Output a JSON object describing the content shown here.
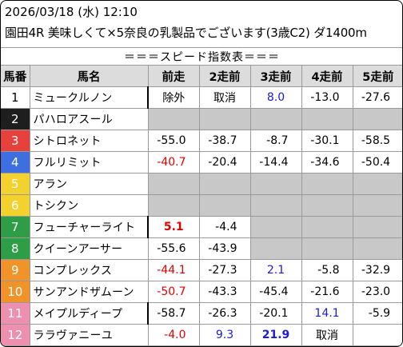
{
  "header": {
    "line1": "2026/03/18 (水) 12:10",
    "line2": "園田4R 美味しくて×5奈良の乳製品でございます(3歳C2) ダ1400m"
  },
  "table": {
    "title": "＝＝＝スピード指数表＝＝＝",
    "columns": [
      "馬番",
      "馬名",
      "前走",
      "2走前",
      "3走前",
      "4走前",
      "5走前"
    ],
    "rows": [
      {
        "num": "1",
        "name": "ミュークルノン",
        "cells": [
          {
            "v": "除外",
            "style": "text"
          },
          {
            "v": "取消",
            "style": "text"
          },
          {
            "v": "8.0",
            "style": "blue"
          },
          {
            "v": "-13.0",
            "style": "normal"
          },
          {
            "v": "-27.6",
            "style": "normal"
          }
        ]
      },
      {
        "num": "2",
        "name": "パハロアスール",
        "cells": [
          {
            "v": "",
            "style": "empty"
          },
          {
            "v": "",
            "style": "empty"
          },
          {
            "v": "",
            "style": "empty"
          },
          {
            "v": "",
            "style": "empty"
          },
          {
            "v": "",
            "style": "empty"
          }
        ]
      },
      {
        "num": "3",
        "name": "シトロネット",
        "cells": [
          {
            "v": "-55.0",
            "style": "normal"
          },
          {
            "v": "-38.7",
            "style": "normal"
          },
          {
            "v": "-8.7",
            "style": "normal"
          },
          {
            "v": "-30.1",
            "style": "normal"
          },
          {
            "v": "-58.5",
            "style": "normal"
          }
        ]
      },
      {
        "num": "4",
        "name": "フルリミット",
        "cells": [
          {
            "v": "-40.7",
            "style": "red"
          },
          {
            "v": "-20.4",
            "style": "normal"
          },
          {
            "v": "-14.4",
            "style": "normal"
          },
          {
            "v": "-34.6",
            "style": "normal"
          },
          {
            "v": "-50.4",
            "style": "normal"
          }
        ]
      },
      {
        "num": "5",
        "name": "アラン",
        "cells": [
          {
            "v": "",
            "style": "empty"
          },
          {
            "v": "",
            "style": "empty"
          },
          {
            "v": "",
            "style": "empty"
          },
          {
            "v": "",
            "style": "empty"
          },
          {
            "v": "",
            "style": "empty"
          }
        ]
      },
      {
        "num": "6",
        "name": "トシクン",
        "cells": [
          {
            "v": "",
            "style": "empty"
          },
          {
            "v": "",
            "style": "empty"
          },
          {
            "v": "",
            "style": "empty"
          },
          {
            "v": "",
            "style": "empty"
          },
          {
            "v": "",
            "style": "empty"
          }
        ]
      },
      {
        "num": "7",
        "name": "フューチャーライト",
        "cells": [
          {
            "v": "5.1",
            "style": "redbold"
          },
          {
            "v": "-4.4",
            "style": "normal"
          },
          {
            "v": "",
            "style": "empty"
          },
          {
            "v": "",
            "style": "empty"
          },
          {
            "v": "",
            "style": "empty"
          }
        ]
      },
      {
        "num": "8",
        "name": "クイーンアーサー",
        "cells": [
          {
            "v": "-55.6",
            "style": "normal"
          },
          {
            "v": "-43.9",
            "style": "normal"
          },
          {
            "v": "",
            "style": "empty"
          },
          {
            "v": "",
            "style": "empty"
          },
          {
            "v": "",
            "style": "empty"
          }
        ]
      },
      {
        "num": "9",
        "name": "コンプレックス",
        "cells": [
          {
            "v": "-44.1",
            "style": "red"
          },
          {
            "v": "-27.3",
            "style": "normal"
          },
          {
            "v": "2.1",
            "style": "blue"
          },
          {
            "v": "-5.8",
            "style": "normal"
          },
          {
            "v": "-32.9",
            "style": "normal"
          }
        ]
      },
      {
        "num": "10",
        "name": "サンアンドザムーン",
        "cells": [
          {
            "v": "-50.7",
            "style": "red"
          },
          {
            "v": "-43.3",
            "style": "normal"
          },
          {
            "v": "-45.4",
            "style": "normal"
          },
          {
            "v": "-21.6",
            "style": "normal"
          },
          {
            "v": "-23.0",
            "style": "normal"
          }
        ]
      },
      {
        "num": "11",
        "name": "メイプルディープ",
        "cells": [
          {
            "v": "-58.7",
            "style": "normal"
          },
          {
            "v": "-26.3",
            "style": "normal"
          },
          {
            "v": "-20.1",
            "style": "normal"
          },
          {
            "v": "14.1",
            "style": "blue"
          },
          {
            "v": "-5.9",
            "style": "normal"
          }
        ]
      },
      {
        "num": "12",
        "name": "ララヴァニーユ",
        "cells": [
          {
            "v": "-4.0",
            "style": "red"
          },
          {
            "v": "9.3",
            "style": "blue"
          },
          {
            "v": "21.9",
            "style": "bluebold"
          },
          {
            "v": "取消",
            "style": "text"
          },
          {
            "v": "",
            "style": "white"
          }
        ]
      }
    ]
  },
  "waku_colors": {
    "1": {
      "bg": "#ffffff",
      "fg": "#000000"
    },
    "2": {
      "bg": "#1e1e1e",
      "fg": "#ffffff"
    },
    "3": {
      "bg": "#e8413c",
      "fg": "#ffffff"
    },
    "4": {
      "bg": "#3d6fe0",
      "fg": "#ffffff"
    },
    "5": {
      "bg": "#f3d22d",
      "fg": "#ffffff"
    },
    "6": {
      "bg": "#f3d22d",
      "fg": "#ffffff"
    },
    "7": {
      "bg": "#2e9e46",
      "fg": "#ffffff"
    },
    "8": {
      "bg": "#2e9e46",
      "fg": "#ffffff"
    },
    "9": {
      "bg": "#f0942a",
      "fg": "#ffffff"
    },
    "10": {
      "bg": "#f0942a",
      "fg": "#ffffff"
    },
    "11": {
      "bg": "#ef8fb0",
      "fg": "#ffffff"
    },
    "12": {
      "bg": "#ef8fb0",
      "fg": "#ffffff"
    }
  },
  "text_colors": {
    "red": "#e00000",
    "blue": "#1a1add",
    "header_bg": "#dcdcdc",
    "empty_bg": "#c8c8c8"
  }
}
